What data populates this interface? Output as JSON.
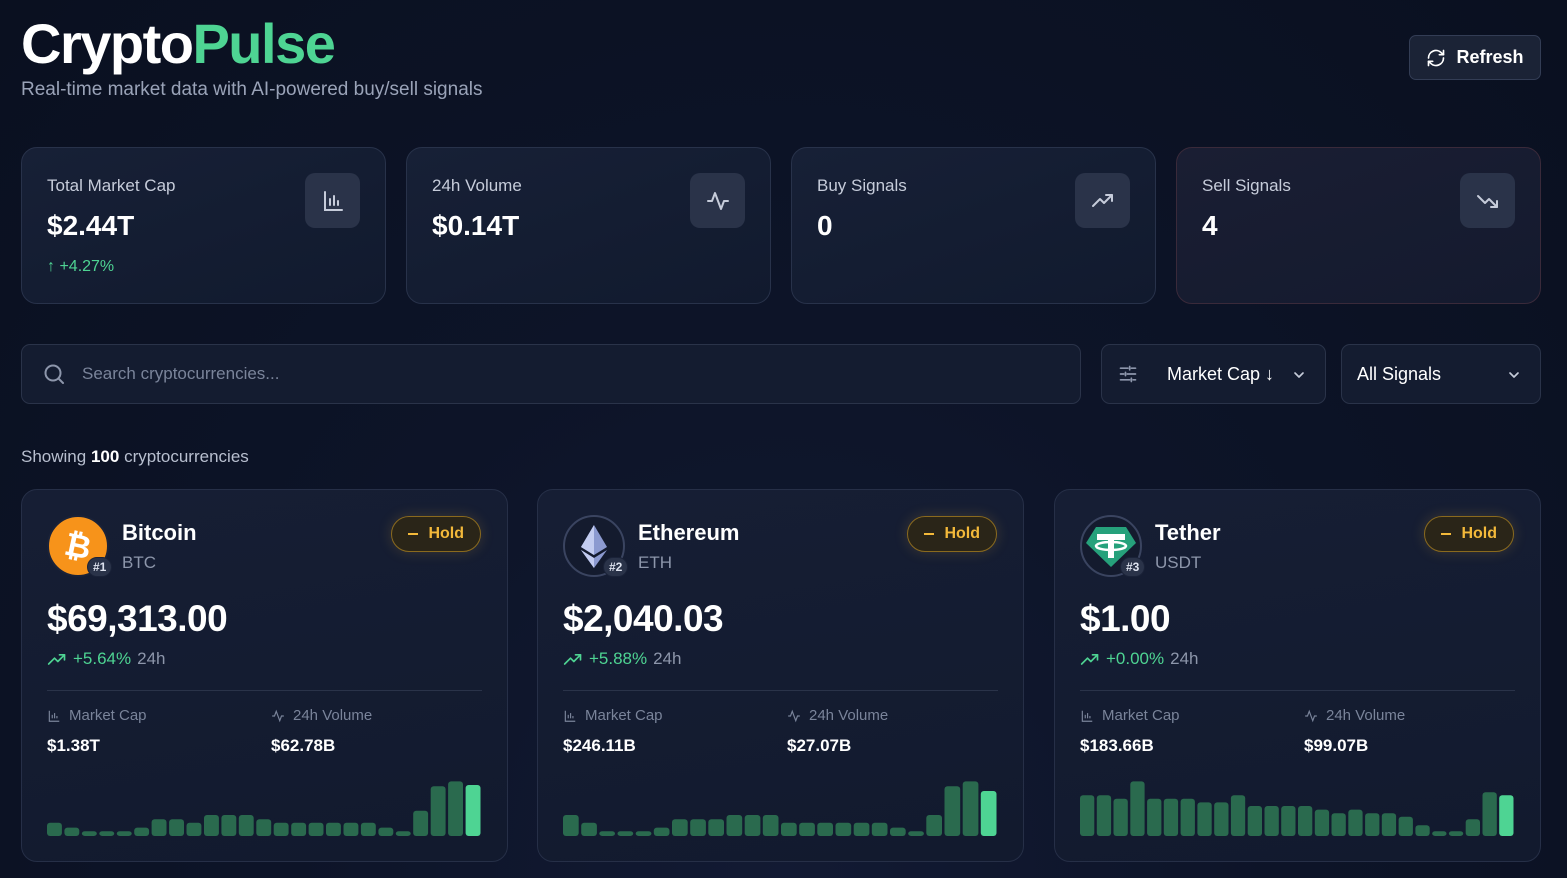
{
  "header": {
    "title_part1": "Crypto",
    "title_part2": "Pulse",
    "subtitle": "Real-time market data with AI-powered buy/sell signals"
  },
  "refresh": {
    "label": "Refresh",
    "icon": "refresh-icon"
  },
  "stats": [
    {
      "label": "Total Market Cap",
      "value": "$2.44T",
      "change": "↑ +4.27%",
      "icon": "bar-chart-icon"
    },
    {
      "label": "24h Volume",
      "value": "$0.14T",
      "icon": "activity-icon"
    },
    {
      "label": "Buy Signals",
      "value": "0",
      "icon": "trending-up-icon"
    },
    {
      "label": "Sell Signals",
      "value": "4",
      "icon": "trending-down-icon"
    }
  ],
  "search": {
    "placeholder": "Search cryptocurrencies..."
  },
  "sort": {
    "selected": "Market Cap ↓"
  },
  "signal_filter": {
    "selected": "All Signals"
  },
  "showing": {
    "prefix": "Showing",
    "count": "100",
    "suffix": "cryptocurrencies"
  },
  "coins": [
    {
      "name": "Bitcoin",
      "symbol": "BTC",
      "rank": "#1",
      "signal": "Hold",
      "price": "$69,313.00",
      "change": "+5.64%",
      "period": "24h",
      "market_cap_label": "Market Cap",
      "market_cap": "$1.38T",
      "volume_label": "24h Volume",
      "volume": "$62.78B",
      "logo_color": "#f7931a",
      "sparkline": [
        0.22,
        0.14,
        0.08,
        0.08,
        0.08,
        0.14,
        0.28,
        0.28,
        0.22,
        0.35,
        0.35,
        0.35,
        0.28,
        0.22,
        0.22,
        0.22,
        0.22,
        0.22,
        0.22,
        0.14,
        0.08,
        0.42,
        0.83,
        0.91,
        0.85
      ]
    },
    {
      "name": "Ethereum",
      "symbol": "ETH",
      "rank": "#2",
      "signal": "Hold",
      "price": "$2,040.03",
      "change": "+5.88%",
      "period": "24h",
      "market_cap_label": "Market Cap",
      "market_cap": "$246.11B",
      "volume_label": "24h Volume",
      "volume": "$27.07B",
      "logo_color": "#627eea",
      "sparkline": [
        0.35,
        0.22,
        0.08,
        0.08,
        0.08,
        0.14,
        0.28,
        0.28,
        0.28,
        0.35,
        0.35,
        0.35,
        0.22,
        0.22,
        0.22,
        0.22,
        0.22,
        0.22,
        0.14,
        0.08,
        0.35,
        0.83,
        0.91,
        0.75
      ]
    },
    {
      "name": "Tether",
      "symbol": "USDT",
      "rank": "#3",
      "signal": "Hold",
      "price": "$1.00",
      "change": "+0.00%",
      "period": "24h",
      "market_cap_label": "Market Cap",
      "market_cap": "$183.66B",
      "volume_label": "24h Volume",
      "volume": "$99.07B",
      "logo_color": "#26a17b",
      "sparkline": [
        0.68,
        0.68,
        0.62,
        0.91,
        0.62,
        0.62,
        0.62,
        0.56,
        0.56,
        0.68,
        0.5,
        0.5,
        0.5,
        0.5,
        0.44,
        0.38,
        0.44,
        0.38,
        0.38,
        0.32,
        0.18,
        0.08,
        0.08,
        0.28,
        0.73,
        0.68
      ]
    }
  ]
}
